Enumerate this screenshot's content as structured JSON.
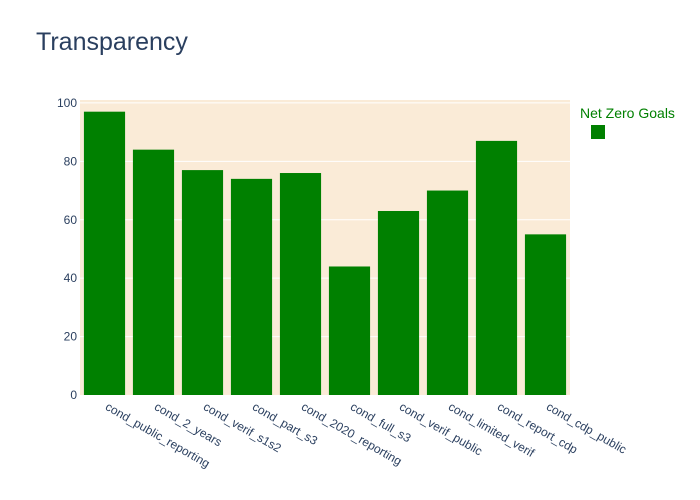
{
  "chart_data": {
    "type": "bar",
    "title": "Transparency",
    "xlabel": "",
    "ylabel": "",
    "categories": [
      "cond_public_reporting",
      "cond_2_years",
      "cond_verif_s1s2",
      "cond_part_s3",
      "cond_2020_reporting",
      "cond_full_s3",
      "cond_verif_public",
      "cond_limited_verif",
      "cond_report_cdp",
      "cond_cdp_public"
    ],
    "series": [
      {
        "name": "Net Zero Goals",
        "values": [
          97,
          84,
          77,
          74,
          76,
          44,
          63,
          70,
          87,
          55
        ]
      }
    ],
    "ylim": [
      0,
      101
    ],
    "yticks": [
      0,
      20,
      40,
      60,
      80,
      100
    ],
    "grid": true,
    "legend_position": "top-right"
  },
  "colors": {
    "bar": "#008000",
    "plot_background": "#faebd7",
    "gridline": "#ffffff",
    "text": "#2a3f5f",
    "legend_title": "#008000"
  }
}
